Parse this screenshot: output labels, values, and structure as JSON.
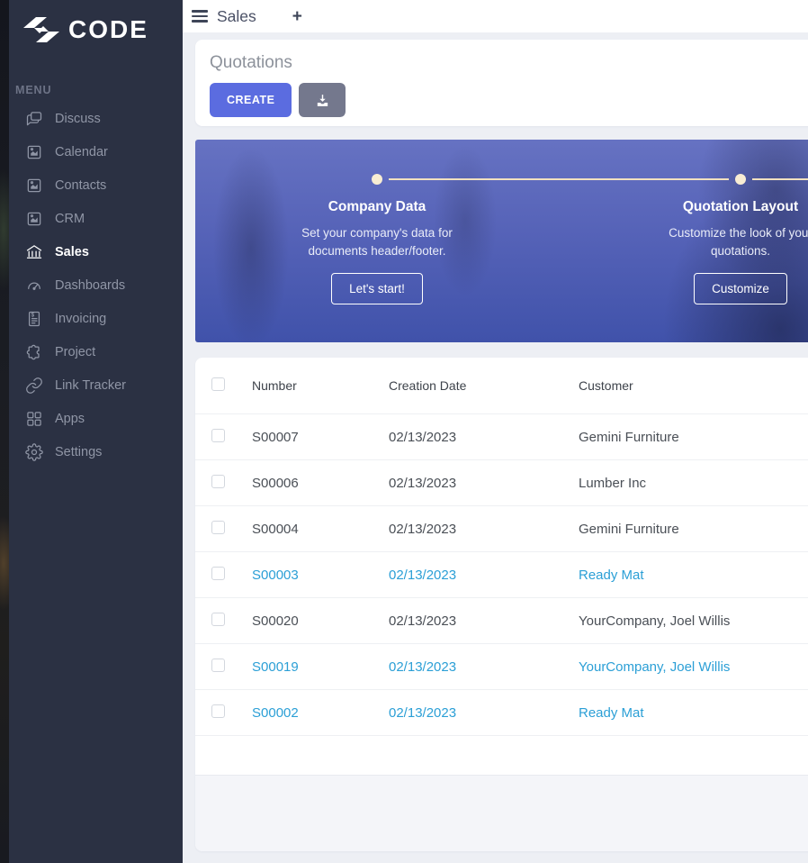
{
  "brand": {
    "name": "CODE"
  },
  "sidebar": {
    "menu_label": "MENU",
    "items": [
      {
        "label": "Discuss",
        "icon": "discuss",
        "active": false
      },
      {
        "label": "Calendar",
        "icon": "calendar",
        "active": false
      },
      {
        "label": "Contacts",
        "icon": "contacts",
        "active": false
      },
      {
        "label": "CRM",
        "icon": "crm",
        "active": false
      },
      {
        "label": "Sales",
        "icon": "sales",
        "active": true
      },
      {
        "label": "Dashboards",
        "icon": "dashboards",
        "active": false
      },
      {
        "label": "Invoicing",
        "icon": "invoicing",
        "active": false
      },
      {
        "label": "Project",
        "icon": "project",
        "active": false
      },
      {
        "label": "Link Tracker",
        "icon": "link-tracker",
        "active": false
      },
      {
        "label": "Apps",
        "icon": "apps",
        "active": false
      },
      {
        "label": "Settings",
        "icon": "settings",
        "active": false
      }
    ]
  },
  "topbar": {
    "title": "Sales",
    "plus_label": "+"
  },
  "page": {
    "title": "Quotations",
    "create_label": "CREATE"
  },
  "onboarding": {
    "steps": [
      {
        "title": "Company Data",
        "description": "Set your company's data for documents header/footer.",
        "button": "Let's start!"
      },
      {
        "title": "Quotation Layout",
        "description": "Customize the look of your quotations.",
        "button": "Customize"
      }
    ]
  },
  "table": {
    "columns": [
      "Number",
      "Creation Date",
      "Customer"
    ],
    "rows": [
      {
        "number": "S00007",
        "creation_date": "02/13/2023",
        "customer": "Gemini Furniture",
        "highlighted": false
      },
      {
        "number": "S00006",
        "creation_date": "02/13/2023",
        "customer": "Lumber Inc",
        "highlighted": false
      },
      {
        "number": "S00004",
        "creation_date": "02/13/2023",
        "customer": "Gemini Furniture",
        "highlighted": false
      },
      {
        "number": "S00003",
        "creation_date": "02/13/2023",
        "customer": "Ready Mat",
        "highlighted": true
      },
      {
        "number": "S00020",
        "creation_date": "02/13/2023",
        "customer": "YourCompany, Joel Willis",
        "highlighted": false
      },
      {
        "number": "S00019",
        "creation_date": "02/13/2023",
        "customer": "YourCompany, Joel Willis",
        "highlighted": true
      },
      {
        "number": "S00002",
        "creation_date": "02/13/2023",
        "customer": "Ready Mat",
        "highlighted": true
      }
    ]
  },
  "colors": {
    "sidebar_bg": "#2b3143",
    "accent": "#5b6ce0",
    "muted_button": "#74788d",
    "highlight_row_text": "#2b9fd6",
    "timeline": "#f1e1bf",
    "banner_overlay": "#4c5cb3"
  }
}
